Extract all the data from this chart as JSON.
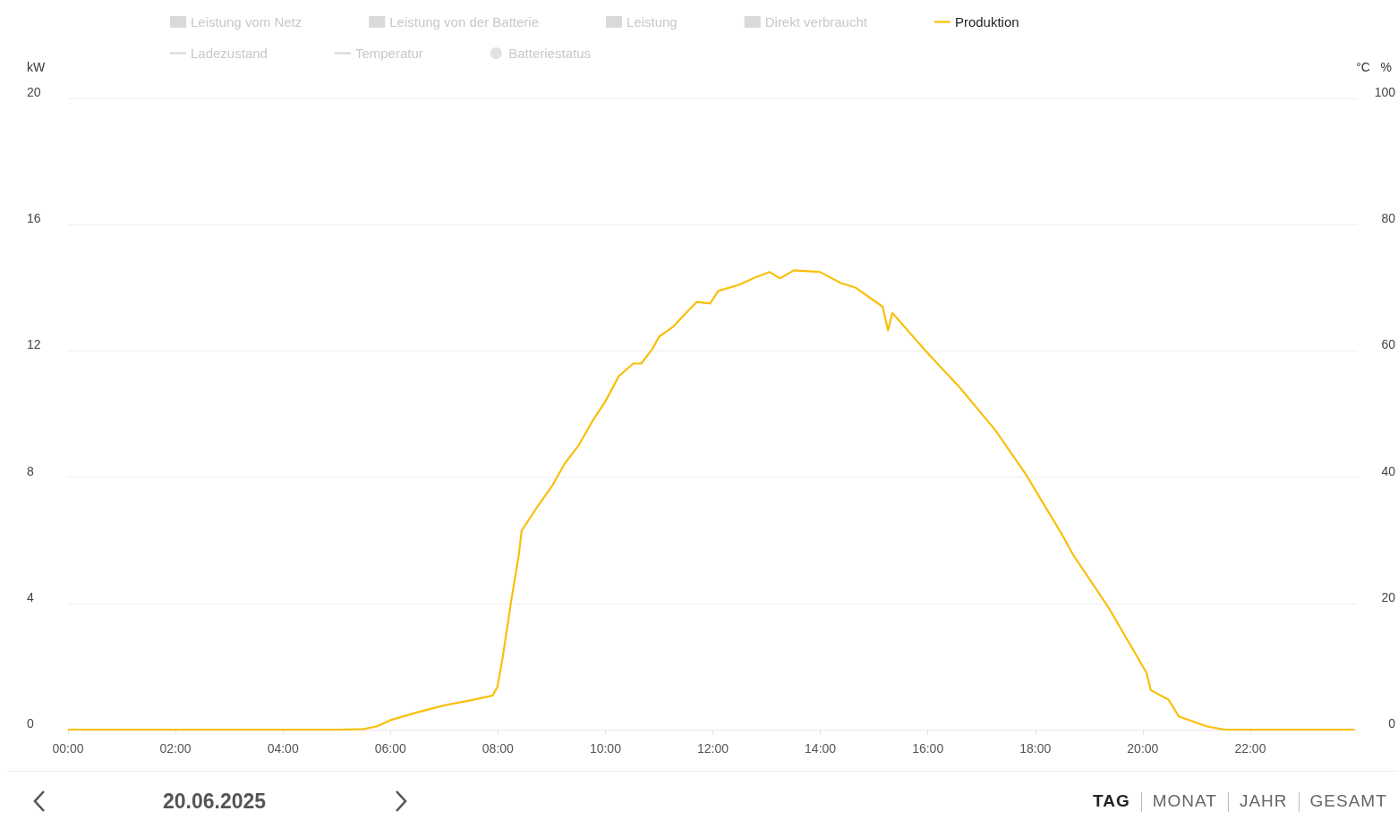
{
  "chart_data": {
    "type": "line",
    "ylabel": "kW",
    "y2label": "°C   %",
    "x": [
      0,
      5.0,
      5.5,
      5.74,
      6.0,
      6.5,
      7.0,
      7.5,
      7.9,
      7.99,
      8.09,
      8.24,
      8.39,
      8.44,
      8.75,
      9.0,
      9.25,
      9.5,
      9.75,
      10.0,
      10.25,
      10.52,
      10.67,
      10.87,
      11.0,
      11.25,
      11.5,
      11.7,
      11.95,
      12.1,
      12.5,
      12.75,
      13.05,
      13.25,
      13.51,
      13.99,
      14.38,
      14.66,
      15.16,
      15.26,
      15.34,
      16.04,
      16.59,
      17.25,
      17.82,
      18.49,
      18.7,
      19.37,
      20.07,
      20.15,
      20.48,
      20.67,
      21.2,
      21.53,
      23.94
    ],
    "series": [
      {
        "name": "Leistung vom Netz",
        "type": "bar",
        "color": "#d9d9d9",
        "values": [
          null,
          null,
          null,
          null,
          null,
          null,
          null,
          null,
          null,
          null,
          null,
          null,
          null,
          null,
          null,
          null,
          null,
          null,
          null,
          null,
          null,
          null,
          null,
          null,
          null,
          null,
          null,
          null,
          null,
          null,
          null,
          null,
          null,
          null,
          null,
          null,
          null,
          null,
          null,
          null,
          null,
          null,
          null,
          null,
          null,
          null,
          null,
          null,
          null,
          null,
          null,
          null,
          null,
          null,
          null
        ]
      },
      {
        "name": "Leistung von der Batterie",
        "type": "bar",
        "color": "#d9d9d9",
        "values": [
          null,
          null,
          null,
          null,
          null,
          null,
          null,
          null,
          null,
          null,
          null,
          null,
          null,
          null,
          null,
          null,
          null,
          null,
          null,
          null,
          null,
          null,
          null,
          null,
          null,
          null,
          null,
          null,
          null,
          null,
          null,
          null,
          null,
          null,
          null,
          null,
          null,
          null,
          null,
          null,
          null,
          null,
          null,
          null,
          null,
          null,
          null,
          null,
          null,
          null,
          null,
          null,
          null,
          null,
          null
        ]
      },
      {
        "name": "Leistung",
        "type": "bar",
        "color": "#d9d9d9",
        "values": [
          null,
          null,
          null,
          null,
          null,
          null,
          null,
          null,
          null,
          null,
          null,
          null,
          null,
          null,
          null,
          null,
          null,
          null,
          null,
          null,
          null,
          null,
          null,
          null,
          null,
          null,
          null,
          null,
          null,
          null,
          null,
          null,
          null,
          null,
          null,
          null,
          null,
          null,
          null,
          null,
          null,
          null,
          null,
          null,
          null,
          null,
          null,
          null,
          null,
          null,
          null,
          null,
          null,
          null,
          null
        ]
      },
      {
        "name": "Direkt verbraucht",
        "type": "bar",
        "color": "#d9d9d9",
        "values": [
          null,
          null,
          null,
          null,
          null,
          null,
          null,
          null,
          null,
          null,
          null,
          null,
          null,
          null,
          null,
          null,
          null,
          null,
          null,
          null,
          null,
          null,
          null,
          null,
          null,
          null,
          null,
          null,
          null,
          null,
          null,
          null,
          null,
          null,
          null,
          null,
          null,
          null,
          null,
          null,
          null,
          null,
          null,
          null,
          null,
          null,
          null,
          null,
          null,
          null,
          null,
          null,
          null,
          null,
          null
        ]
      },
      {
        "name": "Produktion",
        "color": "#f9bf0b",
        "values": [
          0,
          0,
          0.02,
          0.1,
          0.3,
          0.55,
          0.77,
          0.93,
          1.08,
          1.35,
          2.3,
          4.0,
          5.55,
          6.3,
          7.1,
          7.7,
          8.45,
          9.0,
          9.75,
          10.4,
          11.2,
          11.6,
          11.6,
          12.05,
          12.45,
          12.75,
          13.2,
          13.55,
          13.5,
          13.9,
          14.1,
          14.3,
          14.5,
          14.3,
          14.55,
          14.5,
          14.15,
          14.0,
          13.4,
          12.65,
          13.2,
          11.85,
          10.85,
          9.5,
          8.1,
          6.2,
          5.55,
          3.85,
          1.8,
          1.25,
          0.95,
          0.42,
          0.1,
          0,
          0
        ]
      },
      {
        "name": "Ladezustand",
        "type": "line",
        "color": "#d9d9d9",
        "values": [
          null,
          null,
          null,
          null,
          null,
          null,
          null,
          null,
          null,
          null,
          null,
          null,
          null,
          null,
          null,
          null,
          null,
          null,
          null,
          null,
          null,
          null,
          null,
          null,
          null,
          null,
          null,
          null,
          null,
          null,
          null,
          null,
          null,
          null,
          null,
          null,
          null,
          null,
          null,
          null,
          null,
          null,
          null,
          null,
          null,
          null,
          null,
          null,
          null,
          null,
          null,
          null,
          null,
          null,
          null
        ]
      },
      {
        "name": "Temperatur",
        "type": "line",
        "color": "#d9d9d9",
        "values": [
          null,
          null,
          null,
          null,
          null,
          null,
          null,
          null,
          null,
          null,
          null,
          null,
          null,
          null,
          null,
          null,
          null,
          null,
          null,
          null,
          null,
          null,
          null,
          null,
          null,
          null,
          null,
          null,
          null,
          null,
          null,
          null,
          null,
          null,
          null,
          null,
          null,
          null,
          null,
          null,
          null,
          null,
          null,
          null,
          null,
          null,
          null,
          null,
          null,
          null,
          null,
          null,
          null,
          null,
          null
        ]
      },
      {
        "name": "Batteriestatus",
        "type": "scatter",
        "color": "#d9d9d9",
        "values": [
          null,
          null,
          null,
          null,
          null,
          null,
          null,
          null,
          null,
          null,
          null,
          null,
          null,
          null,
          null,
          null,
          null,
          null,
          null,
          null,
          null,
          null,
          null,
          null,
          null,
          null,
          null,
          null,
          null,
          null,
          null,
          null,
          null,
          null,
          null,
          null,
          null,
          null,
          null,
          null,
          null,
          null,
          null,
          null,
          null,
          null,
          null,
          null,
          null,
          null,
          null,
          null,
          null,
          null,
          null
        ]
      }
    ],
    "xlim": [
      0,
      24
    ],
    "xticks": [
      {
        "value": 0,
        "label": "00:00"
      },
      {
        "value": 2,
        "label": "02:00"
      },
      {
        "value": 4,
        "label": "04:00"
      },
      {
        "value": 6,
        "label": "06:00"
      },
      {
        "value": 8,
        "label": "08:00"
      },
      {
        "value": 10,
        "label": "10:00"
      },
      {
        "value": 12,
        "label": "12:00"
      },
      {
        "value": 14,
        "label": "14:00"
      },
      {
        "value": 16,
        "label": "16:00"
      },
      {
        "value": 18,
        "label": "18:00"
      },
      {
        "value": 20,
        "label": "20:00"
      },
      {
        "value": 22,
        "label": "22:00"
      }
    ],
    "ylim": [
      0,
      20
    ],
    "yticks": [
      0,
      4,
      8,
      12,
      16,
      20
    ],
    "y2lim": [
      0,
      100
    ],
    "y2ticks": [
      0,
      20,
      40,
      60,
      80,
      100
    ],
    "grid": "y",
    "legend": "top",
    "marker": "none",
    "line_style": "solid",
    "annotations": [
      "20.06.2025",
      "TAG",
      "MONAT",
      "JAHR",
      "GESAMT"
    ]
  }
}
